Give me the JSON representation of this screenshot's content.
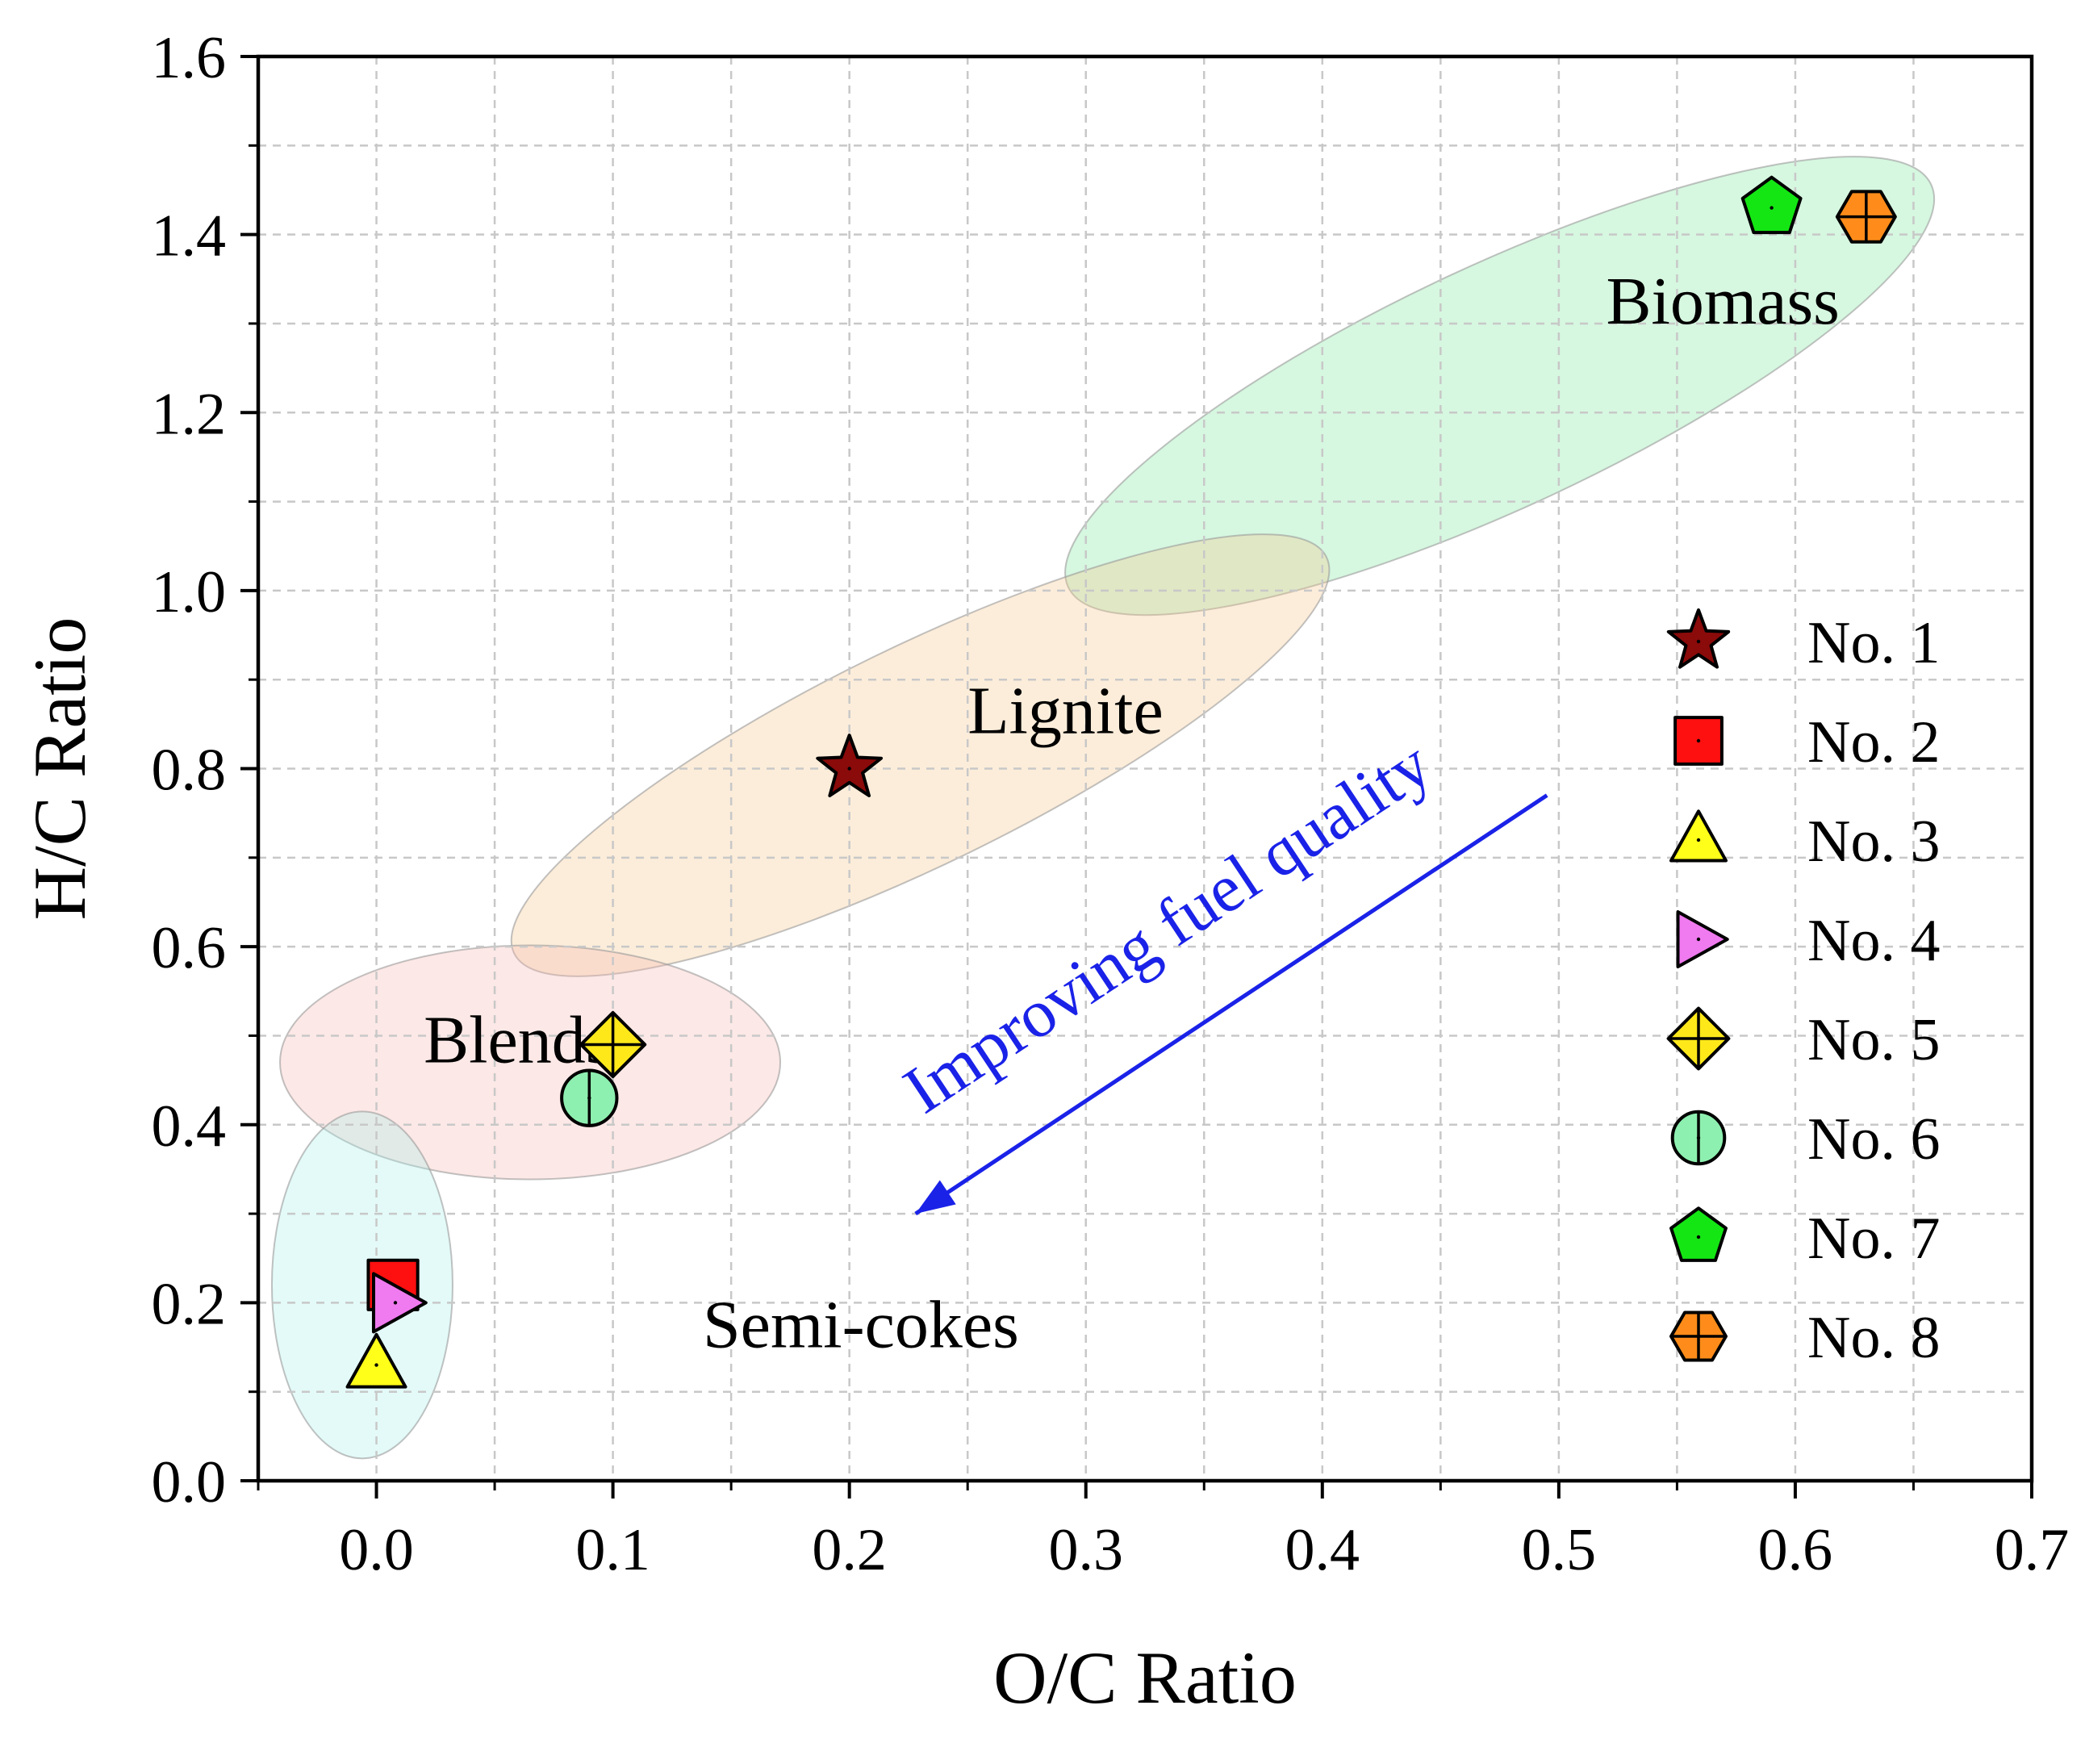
{
  "chart_data": {
    "type": "scatter",
    "xlabel": "O/C Ratio",
    "ylabel": "H/C Ratio",
    "xlim": [
      -0.05,
      0.7
    ],
    "ylim": [
      0.0,
      1.6
    ],
    "xticks": [
      "0.0",
      "0.1",
      "0.2",
      "0.3",
      "0.4",
      "0.5",
      "0.6",
      "0.7"
    ],
    "yticks": [
      "0.0",
      "0.2",
      "0.4",
      "0.6",
      "0.8",
      "1.0",
      "1.2",
      "1.4",
      "1.6"
    ],
    "grid": true,
    "legend_position": "right",
    "series": [
      {
        "name": "No. 1",
        "marker": "star",
        "color": "#8b0a0a",
        "x": 0.2,
        "y": 0.8
      },
      {
        "name": "No. 2",
        "marker": "square",
        "color": "#ff1010",
        "x": 0.007,
        "y": 0.22
      },
      {
        "name": "No. 3",
        "marker": "triangle-up",
        "color": "#ffff1a",
        "x": 0.0,
        "y": 0.13
      },
      {
        "name": "No. 4",
        "marker": "triangle-right",
        "color": "#f07af0",
        "x": 0.008,
        "y": 0.2
      },
      {
        "name": "No. 5",
        "marker": "diamond-plus",
        "color": "#ffe81a",
        "x": 0.1,
        "y": 0.49
      },
      {
        "name": "No. 6",
        "marker": "circle-vline",
        "color": "#8ef0b0",
        "x": 0.09,
        "y": 0.43
      },
      {
        "name": "No. 7",
        "marker": "pentagon",
        "color": "#14e614",
        "x": 0.59,
        "y": 1.43
      },
      {
        "name": "No. 8",
        "marker": "hexagon-plus",
        "color": "#ff8c1a",
        "x": 0.63,
        "y": 1.42
      }
    ],
    "regions": [
      {
        "name": "Biomass",
        "color": "#7fe6a0",
        "cx": 0.475,
        "cy": 1.23,
        "rx_data": 0.215,
        "ry_data": 0.15,
        "label_x": 0.52,
        "label_y": 1.3
      },
      {
        "name": "Lignite",
        "color": "#f5c68c",
        "cx": 0.23,
        "cy": 0.815,
        "rx_data": 0.18,
        "ry_data": 0.11,
        "label_x": 0.25,
        "label_y": 0.84
      },
      {
        "name": "Blends",
        "color": "#f5b8b0",
        "cx": 0.065,
        "cy": 0.47,
        "rx_data": 0.105,
        "ry_data": 0.13,
        "label_x": 0.02,
        "label_y": 0.47
      },
      {
        "name": "Semi-cokes",
        "color": "#a8f0ea",
        "cx": -0.006,
        "cy": 0.22,
        "rx_data": 0.039,
        "ry_data": 0.19,
        "label_x": 0.138,
        "label_y": 0.15
      }
    ],
    "annotations": [
      {
        "text": "Improving fuel quality",
        "color": "#1a22e8",
        "from": [
          0.495,
          0.77
        ],
        "to": [
          0.228,
          0.3
        ]
      }
    ]
  }
}
